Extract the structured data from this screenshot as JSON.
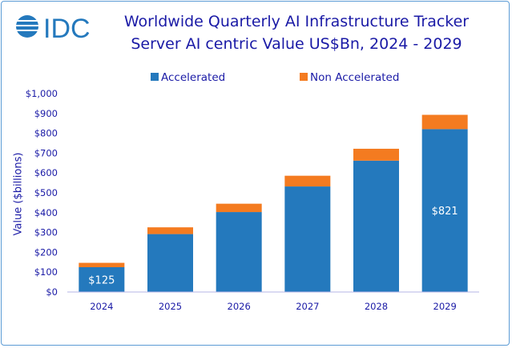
{
  "logo_text": "IDC",
  "chart_data": {
    "type": "bar",
    "stacked": true,
    "title": "Worldwide Quarterly AI Infrastructure Tracker",
    "subtitle": "Server AI centric Value US$Bn, 2024 - 2029",
    "xlabel": "",
    "ylabel": "Value  ($billions)",
    "categories": [
      "2024",
      "2025",
      "2026",
      "2027",
      "2028",
      "2029"
    ],
    "series": [
      {
        "name": "Accelerated",
        "color": "#2479bd",
        "values": [
          125,
          292,
          403,
          532,
          662,
          821
        ]
      },
      {
        "name": "Non Accelerated",
        "color": "#f47b20",
        "values": [
          22,
          34,
          42,
          54,
          60,
          72
        ]
      }
    ],
    "data_labels": [
      {
        "category": "2024",
        "series": "Accelerated",
        "text": "$125"
      },
      {
        "category": "2029",
        "series": "Accelerated",
        "text": "$821"
      }
    ],
    "ylim": [
      0,
      1000
    ],
    "yticks": [
      0,
      100,
      200,
      300,
      400,
      500,
      600,
      700,
      800,
      900,
      1000
    ],
    "ytick_labels": [
      "$0",
      "$100",
      "$200",
      "$300",
      "$400",
      "$500",
      "$600",
      "$700",
      "$800",
      "$900",
      "$1,000"
    ],
    "grid": false,
    "legend_position": "top"
  }
}
